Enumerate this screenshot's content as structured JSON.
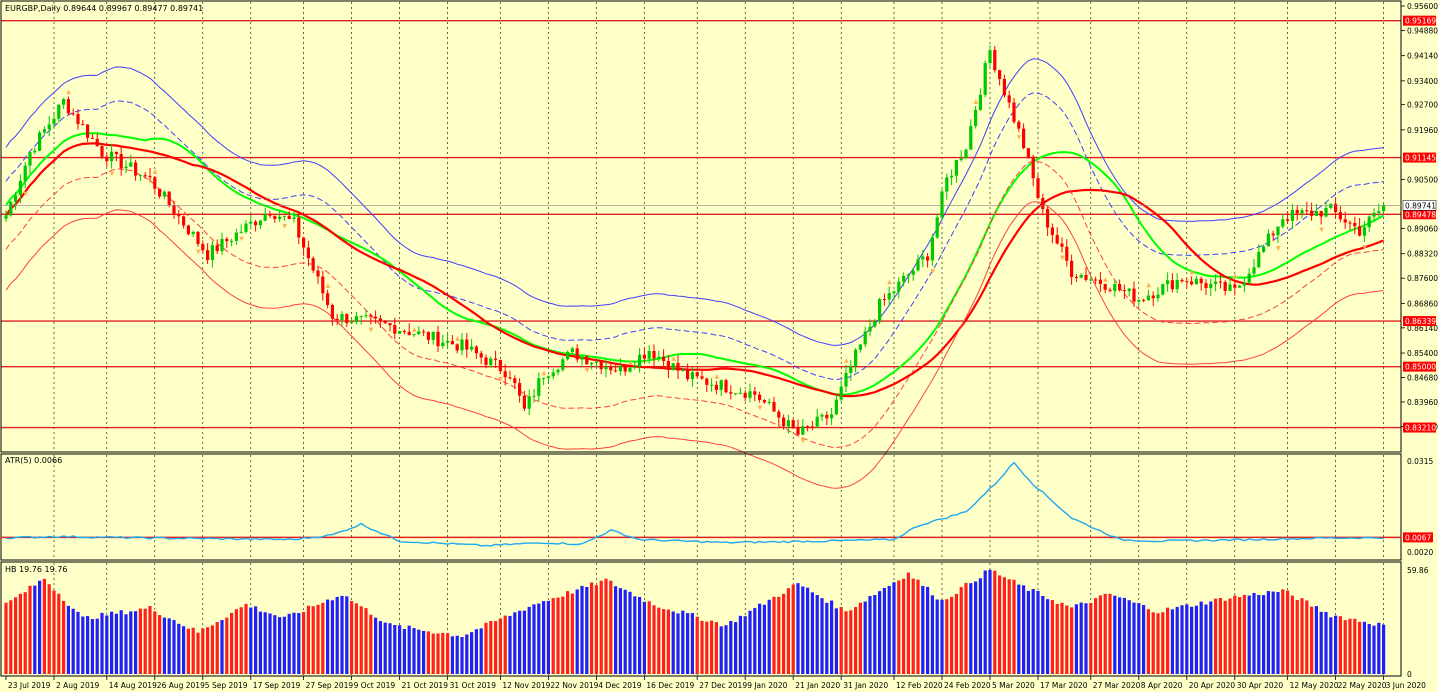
{
  "colors": {
    "background": "#FFFFC8",
    "frame": "#000000",
    "grid": "#000000",
    "bull": "#00C800",
    "bear": "#FF0000",
    "fractal": "#FFB050",
    "env_outer": "#4040FF",
    "env_inner": "#FF4040",
    "ma_green": "#00FF00",
    "ma_red": "#FF0000",
    "hline": "#DD2020",
    "atr_line": "#20A8F0",
    "hist_red": "#FF2020",
    "hist_blue": "#2020FF",
    "price_tag": "#FF0000",
    "current_tag": "#FFFFFF"
  },
  "header": {
    "main_label": "EURGBP,Daily  0.89644 0.89967 0.89477 0.89741",
    "atr_label": "ATR(5) 0.0066",
    "hb_label": "HB 19.76 19.76"
  },
  "chart_data": [
    {
      "type": "candlestick",
      "panel": "main",
      "symbol": "EURGBP",
      "timeframe": "Daily",
      "ylim": [
        0.8255,
        0.956
      ],
      "y_ticks": [
        0.956,
        0.9488,
        0.9414,
        0.934,
        0.927,
        0.9196,
        0.905,
        0.8906,
        0.8832,
        0.876,
        0.8686,
        0.8614,
        0.854,
        0.8468,
        0.8396,
        0.8324
      ],
      "x_labels": [
        "23 Jul 2019",
        "2 Aug 2019",
        "14 Aug 2019",
        "26 Aug 2019",
        "5 Sep 2019",
        "17 Sep 2019",
        "27 Sep 2019",
        "9 Oct 2019",
        "21 Oct 2019",
        "31 Oct 2019",
        "12 Nov 2019",
        "22 Nov 2019",
        "4 Dec 2019",
        "16 Dec 2019",
        "27 Dec 2019",
        "9 Jan 2020",
        "21 Jan 2020",
        "31 Jan 2020",
        "12 Feb 2020",
        "24 Feb 2020",
        "5 Mar 2020",
        "17 Mar 2020",
        "27 Mar 2020",
        "8 Apr 2020",
        "20 Apr 2020",
        "30 Apr 2020",
        "12 May 2020",
        "22 May 2020",
        "3 Jun 2020"
      ],
      "horizontal_levels": [
        "0.95169",
        "0.91145",
        "0.89478",
        "0.86339",
        "0.85000",
        "0.83210"
      ],
      "current_price": "0.89741",
      "keypoints": [
        [
          0,
          0.8945
        ],
        [
          5,
          0.913
        ],
        [
          12,
          0.928
        ],
        [
          20,
          0.913
        ],
        [
          30,
          0.905
        ],
        [
          42,
          0.883
        ],
        [
          55,
          0.896
        ],
        [
          60,
          0.892
        ],
        [
          68,
          0.865
        ],
        [
          80,
          0.862
        ],
        [
          95,
          0.856
        ],
        [
          105,
          0.848
        ],
        [
          108,
          0.837
        ],
        [
          112,
          0.848
        ],
        [
          118,
          0.854
        ],
        [
          128,
          0.849
        ],
        [
          134,
          0.855
        ],
        [
          142,
          0.847
        ],
        [
          156,
          0.842
        ],
        [
          165,
          0.83
        ],
        [
          172,
          0.836
        ],
        [
          176,
          0.85
        ],
        [
          182,
          0.868
        ],
        [
          192,
          0.883
        ],
        [
          196,
          0.905
        ],
        [
          200,
          0.915
        ],
        [
          205,
          0.943
        ],
        [
          212,
          0.915
        ],
        [
          216,
          0.895
        ],
        [
          222,
          0.878
        ],
        [
          230,
          0.874
        ],
        [
          236,
          0.87
        ],
        [
          245,
          0.876
        ],
        [
          256,
          0.872
        ],
        [
          262,
          0.885
        ],
        [
          266,
          0.894
        ],
        [
          276,
          0.896
        ],
        [
          282,
          0.89
        ],
        [
          287,
          0.897
        ]
      ],
      "n_bars": 288
    },
    {
      "type": "line",
      "panel": "atr",
      "title": "ATR(5) 0.0066",
      "ylim": [
        0.0,
        0.0325
      ],
      "y_ticks": [
        0.0315,
        0.002
      ],
      "level": "0.0067",
      "keypoints": [
        [
          0,
          0.0065
        ],
        [
          10,
          0.007
        ],
        [
          30,
          0.0065
        ],
        [
          60,
          0.006
        ],
        [
          68,
          0.0075
        ],
        [
          74,
          0.011
        ],
        [
          82,
          0.0055
        ],
        [
          100,
          0.004
        ],
        [
          112,
          0.005
        ],
        [
          120,
          0.0045
        ],
        [
          126,
          0.009
        ],
        [
          132,
          0.006
        ],
        [
          150,
          0.005
        ],
        [
          170,
          0.0055
        ],
        [
          185,
          0.006
        ],
        [
          190,
          0.0105
        ],
        [
          200,
          0.015
        ],
        [
          206,
          0.024
        ],
        [
          210,
          0.031
        ],
        [
          214,
          0.024
        ],
        [
          222,
          0.013
        ],
        [
          232,
          0.006
        ],
        [
          240,
          0.0055
        ],
        [
          260,
          0.006
        ],
        [
          275,
          0.0065
        ],
        [
          287,
          0.0066
        ]
      ]
    },
    {
      "type": "bar",
      "panel": "hb",
      "title": "HB 19.76 19.76",
      "ylim": [
        0,
        61
      ],
      "y_ticks": [
        59.86,
        0
      ],
      "last_values": [
        19.76,
        19.76
      ],
      "series": [
        {
          "color": "red",
          "runs": [
            [
              0,
              5
            ],
            [
              8,
              12
            ],
            [
              28,
              32
            ],
            [
              38,
              44
            ],
            [
              46,
              50
            ],
            [
              62,
              66
            ],
            [
              72,
              76
            ],
            [
              88,
              92
            ],
            [
              100,
              104
            ],
            [
              114,
              118
            ],
            [
              122,
              126
            ],
            [
              134,
              138
            ],
            [
              144,
              148
            ],
            [
              160,
              164
            ],
            [
              174,
              178
            ],
            [
              186,
              190
            ],
            [
              196,
              200
            ],
            [
              206,
              210
            ],
            [
              218,
              222
            ],
            [
              226,
              230
            ],
            [
              238,
              242
            ],
            [
              252,
              258
            ],
            [
              266,
              272
            ],
            [
              278,
              282
            ]
          ]
        },
        {
          "color": "blue",
          "runs": [
            [
              6,
              7
            ],
            [
              13,
              27
            ],
            [
              33,
              37
            ],
            [
              45,
              45
            ],
            [
              51,
              61
            ],
            [
              67,
              71
            ],
            [
              77,
              87
            ],
            [
              93,
              99
            ],
            [
              105,
              113
            ],
            [
              119,
              121
            ],
            [
              127,
              133
            ],
            [
              139,
              143
            ],
            [
              149,
              159
            ],
            [
              165,
              173
            ],
            [
              179,
              185
            ],
            [
              191,
              195
            ],
            [
              201,
              205
            ],
            [
              211,
              217
            ],
            [
              223,
              225
            ],
            [
              231,
              237
            ],
            [
              243,
              251
            ],
            [
              259,
              265
            ],
            [
              273,
              277
            ],
            [
              283,
              287
            ]
          ]
        }
      ],
      "envelope": [
        [
          0,
          40
        ],
        [
          8,
          55
        ],
        [
          16,
          32
        ],
        [
          30,
          38
        ],
        [
          40,
          24
        ],
        [
          50,
          40
        ],
        [
          58,
          32
        ],
        [
          70,
          46
        ],
        [
          80,
          28
        ],
        [
          95,
          22
        ],
        [
          110,
          40
        ],
        [
          125,
          54
        ],
        [
          135,
          40
        ],
        [
          150,
          28
        ],
        [
          165,
          52
        ],
        [
          175,
          36
        ],
        [
          188,
          58
        ],
        [
          195,
          42
        ],
        [
          205,
          60
        ],
        [
          212,
          50
        ],
        [
          222,
          38
        ],
        [
          230,
          46
        ],
        [
          240,
          36
        ],
        [
          255,
          44
        ],
        [
          266,
          48
        ],
        [
          276,
          34
        ],
        [
          287,
          28
        ]
      ]
    }
  ]
}
